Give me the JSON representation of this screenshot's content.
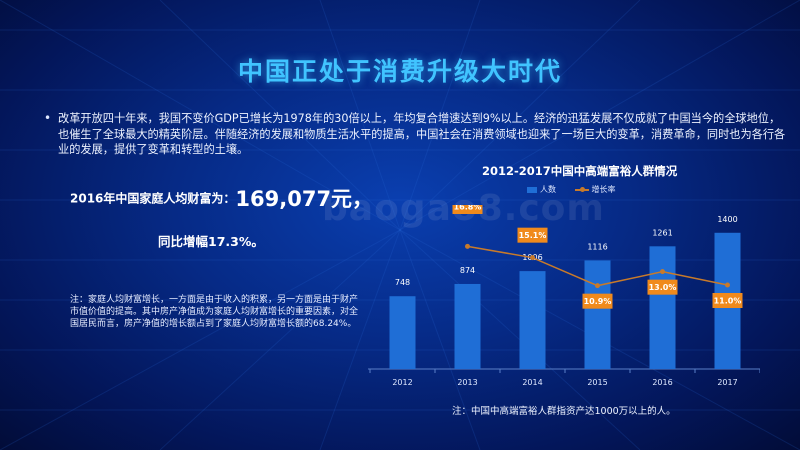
{
  "slide": {
    "title": "中国正处于消费升级大时代",
    "bullet_text": "改革开放四十年来，我国不变价GDP已增长为1978年的30倍以上，年均复合增速达到9%以上。经济的迅猛发展不仅成就了中国当今的全球地位，也催生了全球最大的精英阶层。伴随经济的发展和物质生活水平的提高，中国社会在消费领域也迎来了一场巨大的变革，消费革命，同时也为各行各业的发展，提供了变革和转型的土壤。",
    "stat_label": "2016年中国家庭人均财富为：",
    "stat_value": "169,077元，",
    "yoy_text": "同比增幅17.3%。",
    "note_left": "注：家庭人均财富增长，一方面是由于收入的积累，另一方面是由于财产市值价值的提高。其中房产净值成为家庭人均财富增长的重要因素，对全国居民而言，房产净值的增长额占到了家庭人均财富增长额的68.24%。",
    "watermark": "baogao8.com",
    "note_right": "注：中国中高端富裕人群指资产达1000万以上的人。"
  },
  "colors": {
    "title": "#40c4ff",
    "bar": "#1f6ed6",
    "line": "#c87a2a",
    "label_box": "#f08a1c"
  },
  "chart_data": {
    "type": "bar",
    "title": "2012-2017中国中高端富裕人群情况",
    "categories": [
      "2012",
      "2013",
      "2014",
      "2015",
      "2016",
      "2017"
    ],
    "series": [
      {
        "name": "人数",
        "type": "bar",
        "values": [
          748,
          874,
          1006,
          1116,
          1261,
          1400
        ]
      },
      {
        "name": "增长率",
        "type": "line",
        "values": [
          16.8,
          15.1,
          10.9,
          13.0,
          11.0
        ],
        "x": [
          "2013",
          "2014",
          "2015",
          "2016",
          "2017"
        ]
      }
    ],
    "bar_labels": [
      "748",
      "874",
      "1006",
      "1116",
      "1261",
      "1400"
    ],
    "line_labels": [
      "16.8%",
      "15.1%",
      "10.9%",
      "13.0%",
      "11.0%"
    ],
    "legend": [
      "人数",
      "增长率"
    ],
    "legend_position": "top",
    "grid": false
  }
}
